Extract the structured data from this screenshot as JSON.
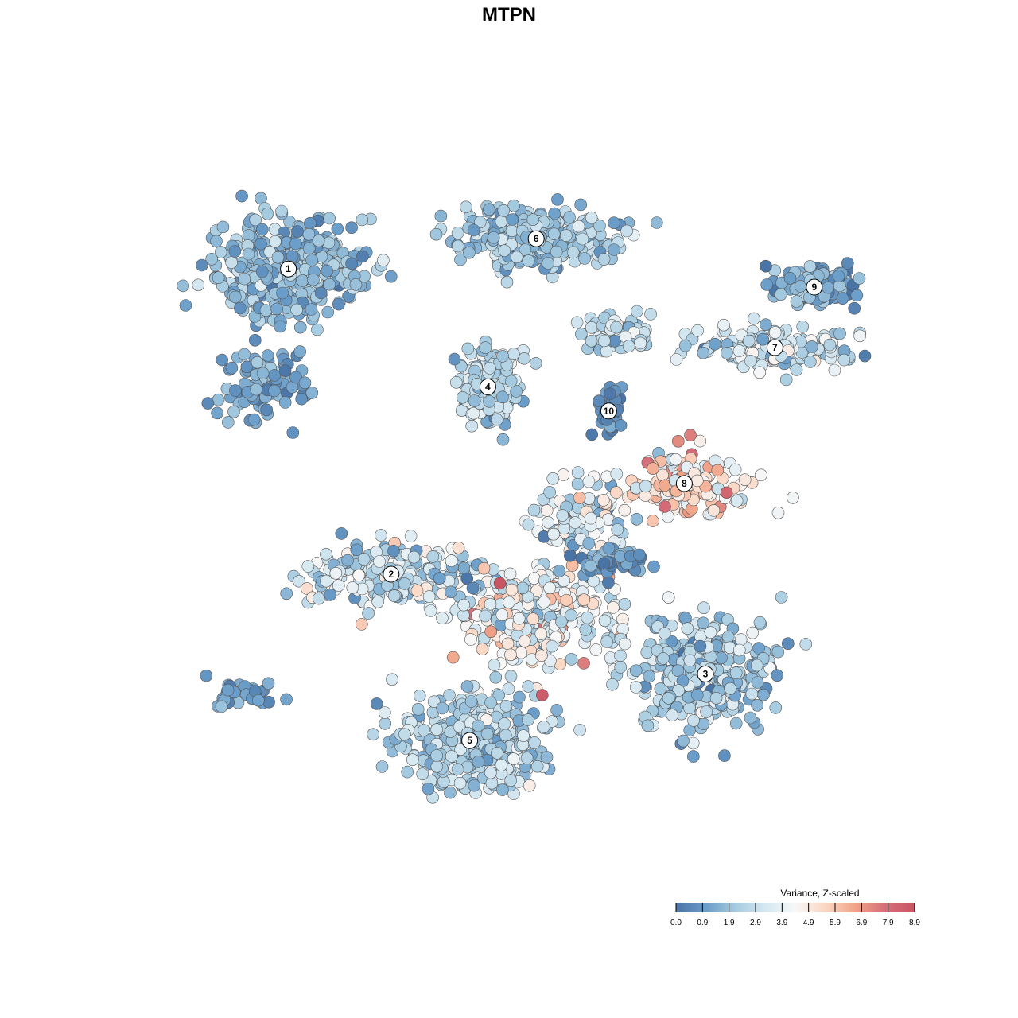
{
  "chart_data": {
    "type": "scatter",
    "title": "MTPN",
    "xlabel": "",
    "ylabel": "",
    "grid": false,
    "legend": {
      "title": "Variance, Z-scaled",
      "placement": "bottom-right",
      "ticks": [
        "0.0",
        "0.9",
        "1.9",
        "2.9",
        "3.9",
        "4.9",
        "5.9",
        "6.9",
        "7.9",
        "8.9"
      ],
      "min": 0.0,
      "max": 8.9,
      "colors": [
        "#4a74a6",
        "#6a9dc9",
        "#a6cbe0",
        "#d6e8f1",
        "#f7f7f7",
        "#fbd7c4",
        "#f1a488",
        "#d6707a",
        "#c85563"
      ]
    },
    "clusters": [
      {
        "label": "1",
        "x": -7.3,
        "y": 7.1,
        "spread_x": 1.55,
        "spread_y": 1.15,
        "n": 420,
        "mean": 1.9,
        "sd": 0.75
      },
      {
        "label": "6",
        "x": 0.9,
        "y": 8.1,
        "spread_x": 1.6,
        "spread_y": 0.6,
        "n": 320,
        "mean": 2.1,
        "sd": 0.7
      },
      {
        "label": "4",
        "x": -0.7,
        "y": 3.2,
        "spread_x": 0.7,
        "spread_y": 0.85,
        "n": 190,
        "mean": 2.6,
        "sd": 0.8
      },
      {
        "label": "10",
        "x": 3.3,
        "y": 2.4,
        "spread_x": 0.25,
        "spread_y": 0.55,
        "n": 45,
        "mean": 0.5,
        "sd": 0.4
      },
      {
        "label": "9",
        "x": 10.1,
        "y": 6.5,
        "spread_x": 1.0,
        "spread_y": 0.45,
        "n": 110,
        "mean": 1.2,
        "sd": 0.8
      },
      {
        "label": "7",
        "x": 8.8,
        "y": 4.5,
        "spread_x": 1.6,
        "spread_y": 0.45,
        "n": 170,
        "mean": 2.8,
        "sd": 0.9
      },
      {
        "label": "8",
        "x": 5.8,
        "y": 0.0,
        "spread_x": 1.4,
        "spread_y": 0.65,
        "n": 140,
        "mean": 4.9,
        "sd": 1.3
      },
      {
        "label": "2",
        "x": -3.9,
        "y": -3.0,
        "spread_x": 2.0,
        "spread_y": 0.75,
        "n": 210,
        "mean": 3.0,
        "sd": 1.3
      },
      {
        "label": "3",
        "x": 6.5,
        "y": -6.3,
        "spread_x": 1.5,
        "spread_y": 1.15,
        "n": 360,
        "mean": 2.3,
        "sd": 0.8
      },
      {
        "label": "5",
        "x": -1.3,
        "y": -8.5,
        "spread_x": 1.55,
        "spread_y": 1.05,
        "n": 380,
        "mean": 2.6,
        "sd": 0.8
      }
    ],
    "extra_groups": [
      {
        "x": 0.9,
        "y": -4.4,
        "spread_x": 1.9,
        "spread_y": 1.0,
        "n": 330,
        "mean": 4.0,
        "sd": 1.2
      },
      {
        "x": 2.5,
        "y": -1.2,
        "spread_x": 1.0,
        "spread_y": 0.7,
        "n": 110,
        "mean": 3.3,
        "sd": 1.3
      },
      {
        "x": -8.2,
        "y": 3.3,
        "spread_x": 0.9,
        "spread_y": 0.8,
        "n": 90,
        "mean": 1.2,
        "sd": 0.6
      },
      {
        "x": 3.6,
        "y": 5.0,
        "spread_x": 0.8,
        "spread_y": 0.45,
        "n": 70,
        "mean": 2.6,
        "sd": 0.8
      },
      {
        "x": -8.9,
        "y": -7.0,
        "spread_x": 0.75,
        "spread_y": 0.35,
        "n": 35,
        "mean": 1.1,
        "sd": 0.5
      },
      {
        "x": 3.2,
        "y": -2.6,
        "spread_x": 0.7,
        "spread_y": 0.35,
        "n": 55,
        "mean": 0.9,
        "sd": 0.6
      }
    ],
    "highlight_points": [
      {
        "x": -0.3,
        "y": -3.3,
        "value": 8.9
      },
      {
        "x": 1.1,
        "y": -7.0,
        "value": 8.6
      },
      {
        "x": 7.2,
        "y": -0.3,
        "value": 8.2
      },
      {
        "x": 6.0,
        "y": 1.6,
        "value": 7.5
      },
      {
        "x": 5.6,
        "y": 1.4,
        "value": 7.2
      },
      {
        "x": -0.6,
        "y": -4.9,
        "value": 6.8
      }
    ],
    "random_seed": 7
  }
}
